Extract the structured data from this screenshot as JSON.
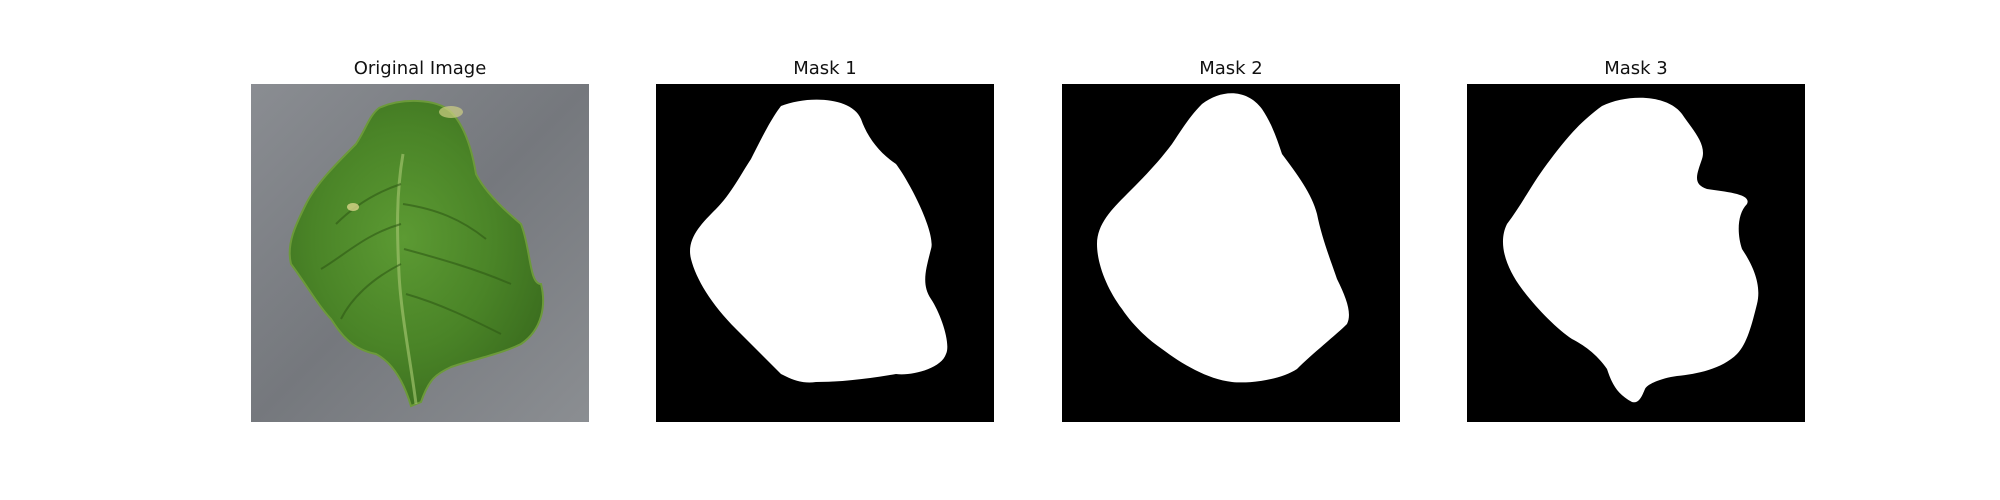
{
  "figure": {
    "panels": [
      {
        "title": "Original Image",
        "kind": "photo"
      },
      {
        "title": "Mask 1",
        "kind": "mask"
      },
      {
        "title": "Mask 2",
        "kind": "mask"
      },
      {
        "title": "Mask 3",
        "kind": "mask"
      }
    ],
    "colors": {
      "background": "#ffffff",
      "mask_background": "#000000",
      "mask_foreground": "#ffffff",
      "leaf_green": "#4f8a2a",
      "photo_background": "#7a7d82"
    }
  }
}
